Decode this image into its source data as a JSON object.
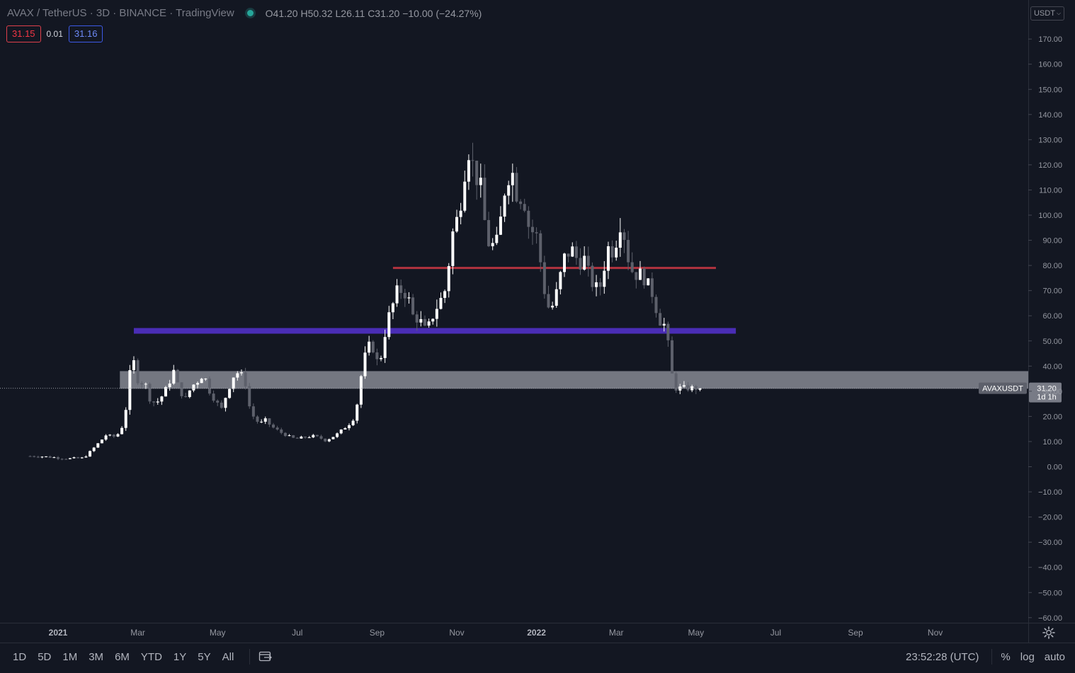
{
  "legend": {
    "title": "AVAX / TetherUS · 3D · BINANCE · TradingView",
    "ohlc": "O41.20  H50.32  L26.11  C31.20  −10.00 (−24.27%)"
  },
  "quote": {
    "sell": "31.15",
    "spread": "0.01",
    "buy": "31.16"
  },
  "currency": "USDT",
  "last_price_label": {
    "symbol": "AVAXUSDT",
    "price": "31.20",
    "countdown": "1d 1h"
  },
  "bottom_bar": {
    "ranges": [
      "1D",
      "5D",
      "1M",
      "3M",
      "6M",
      "YTD",
      "1Y",
      "5Y",
      "All"
    ],
    "time": "23:52:28 (UTC)",
    "percent": "%",
    "log": "log",
    "auto": "auto"
  },
  "colors": {
    "background": "#131722",
    "candle_up": "#ffffff",
    "candle_down": "#5d606b",
    "red_line": "#b2333f",
    "purple_band": "#4a2db5",
    "grey_zone": "#9598a1"
  },
  "chart_data": {
    "type": "candlestick",
    "y_ticks": [
      "170.00",
      "160.00",
      "150.00",
      "140.00",
      "130.00",
      "120.00",
      "110.00",
      "100.00",
      "90.00",
      "80.00",
      "70.00",
      "60.00",
      "50.00",
      "40.00",
      "30.00",
      "20.00",
      "10.00",
      "0.00",
      "−10.00",
      "−20.00",
      "−30.00",
      "−40.00",
      "−50.00",
      "−60.00"
    ],
    "ylim": [
      -63,
      175
    ],
    "x_axis_labels": [
      {
        "label": "2021",
        "month": 0
      },
      {
        "label": "Mar",
        "month": 2
      },
      {
        "label": "May",
        "month": 4
      },
      {
        "label": "Jul",
        "month": 6
      },
      {
        "label": "Sep",
        "month": 8
      },
      {
        "label": "Nov",
        "month": 10
      },
      {
        "label": "2022",
        "month": 12
      },
      {
        "label": "Mar",
        "month": 14
      },
      {
        "label": "May",
        "month": 16
      },
      {
        "label": "Jul",
        "month": 18
      },
      {
        "label": "Sep",
        "month": 20
      },
      {
        "label": "Nov",
        "month": 22
      }
    ],
    "last_close": 31.2,
    "series_start_month": -0.7,
    "series_end_month": 16.15,
    "series": [
      {
        "m": -0.5,
        "c": 4.2
      },
      {
        "m": 0.3,
        "c": 3.2
      },
      {
        "m": 0.6,
        "c": 3.4
      },
      {
        "m": 0.75,
        "c": 5.0
      },
      {
        "m": 0.9,
        "c": 7.5
      },
      {
        "m": 1.05,
        "c": 10.0
      },
      {
        "m": 1.2,
        "c": 12.5
      },
      {
        "m": 1.4,
        "c": 12.0
      },
      {
        "m": 1.55,
        "c": 13.5
      },
      {
        "m": 1.65,
        "c": 18.0
      },
      {
        "m": 1.75,
        "c": 28.0
      },
      {
        "m": 1.85,
        "c": 46.0
      },
      {
        "m": 1.95,
        "c": 37.0
      },
      {
        "m": 2.05,
        "c": 32.0
      },
      {
        "m": 2.15,
        "c": 35.0
      },
      {
        "m": 2.3,
        "c": 27.0
      },
      {
        "m": 2.45,
        "c": 25.0
      },
      {
        "m": 2.6,
        "c": 28.0
      },
      {
        "m": 2.75,
        "c": 32.0
      },
      {
        "m": 2.9,
        "c": 38.0
      },
      {
        "m": 3.05,
        "c": 30.0
      },
      {
        "m": 3.2,
        "c": 27.0
      },
      {
        "m": 3.35,
        "c": 32.0
      },
      {
        "m": 3.5,
        "c": 34.0
      },
      {
        "m": 3.65,
        "c": 37.0
      },
      {
        "m": 3.8,
        "c": 30.0
      },
      {
        "m": 3.95,
        "c": 26.0
      },
      {
        "m": 4.1,
        "c": 23.0
      },
      {
        "m": 4.25,
        "c": 30.0
      },
      {
        "m": 4.4,
        "c": 36.0
      },
      {
        "m": 4.55,
        "c": 38.0
      },
      {
        "m": 4.7,
        "c": 33.0
      },
      {
        "m": 4.8,
        "c": 24.0
      },
      {
        "m": 4.9,
        "c": 20.0
      },
      {
        "m": 5.05,
        "c": 17.0
      },
      {
        "m": 5.2,
        "c": 18.5
      },
      {
        "m": 5.35,
        "c": 16.0
      },
      {
        "m": 5.5,
        "c": 14.5
      },
      {
        "m": 5.65,
        "c": 13.0
      },
      {
        "m": 5.8,
        "c": 12.0
      },
      {
        "m": 5.95,
        "c": 11.0
      },
      {
        "m": 6.1,
        "c": 11.5
      },
      {
        "m": 6.25,
        "c": 11.8
      },
      {
        "m": 6.4,
        "c": 12.2
      },
      {
        "m": 6.55,
        "c": 11.6
      },
      {
        "m": 6.7,
        "c": 10.5
      },
      {
        "m": 6.85,
        "c": 11.5
      },
      {
        "m": 7.0,
        "c": 13.0
      },
      {
        "m": 7.15,
        "c": 15.0
      },
      {
        "m": 7.3,
        "c": 17.0
      },
      {
        "m": 7.45,
        "c": 20.0
      },
      {
        "m": 7.55,
        "c": 30.0
      },
      {
        "m": 7.65,
        "c": 42.0
      },
      {
        "m": 7.75,
        "c": 46.0
      },
      {
        "m": 7.85,
        "c": 50.0
      },
      {
        "m": 7.95,
        "c": 44.0
      },
      {
        "m": 8.05,
        "c": 40.0
      },
      {
        "m": 8.15,
        "c": 48.0
      },
      {
        "m": 8.25,
        "c": 58.0
      },
      {
        "m": 8.35,
        "c": 62.0
      },
      {
        "m": 8.45,
        "c": 67.0
      },
      {
        "m": 8.55,
        "c": 72.0
      },
      {
        "m": 8.65,
        "c": 68.0
      },
      {
        "m": 8.75,
        "c": 70.0
      },
      {
        "m": 8.85,
        "c": 62.0
      },
      {
        "m": 8.95,
        "c": 58.0
      },
      {
        "m": 9.05,
        "c": 60.0
      },
      {
        "m": 9.15,
        "c": 55.0
      },
      {
        "m": 9.25,
        "c": 54.0
      },
      {
        "m": 9.35,
        "c": 58.0
      },
      {
        "m": 9.45,
        "c": 62.0
      },
      {
        "m": 9.55,
        "c": 65.0
      },
      {
        "m": 9.65,
        "c": 68.0
      },
      {
        "m": 9.75,
        "c": 72.0
      },
      {
        "m": 9.85,
        "c": 90.0
      },
      {
        "m": 9.95,
        "c": 96.0
      },
      {
        "m": 10.05,
        "c": 100.0
      },
      {
        "m": 10.15,
        "c": 112.0
      },
      {
        "m": 10.25,
        "c": 124.0
      },
      {
        "m": 10.35,
        "c": 128.0
      },
      {
        "m": 10.45,
        "c": 112.0
      },
      {
        "m": 10.55,
        "c": 118.0
      },
      {
        "m": 10.65,
        "c": 103.0
      },
      {
        "m": 10.75,
        "c": 92.0
      },
      {
        "m": 10.85,
        "c": 86.0
      },
      {
        "m": 10.95,
        "c": 90.0
      },
      {
        "m": 11.05,
        "c": 88.0
      },
      {
        "m": 11.15,
        "c": 108.0
      },
      {
        "m": 11.25,
        "c": 112.0
      },
      {
        "m": 11.35,
        "c": 120.0
      },
      {
        "m": 11.45,
        "c": 113.0
      },
      {
        "m": 11.55,
        "c": 105.0
      },
      {
        "m": 11.65,
        "c": 110.0
      },
      {
        "m": 11.75,
        "c": 100.0
      },
      {
        "m": 11.85,
        "c": 92.0
      },
      {
        "m": 11.95,
        "c": 95.0
      },
      {
        "m": 12.05,
        "c": 88.0
      },
      {
        "m": 12.15,
        "c": 75.0
      },
      {
        "m": 12.25,
        "c": 65.0
      },
      {
        "m": 12.35,
        "c": 62.0
      },
      {
        "m": 12.45,
        "c": 66.0
      },
      {
        "m": 12.55,
        "c": 72.0
      },
      {
        "m": 12.65,
        "c": 80.0
      },
      {
        "m": 12.75,
        "c": 86.0
      },
      {
        "m": 12.85,
        "c": 84.0
      },
      {
        "m": 12.95,
        "c": 88.0
      },
      {
        "m": 13.05,
        "c": 78.0
      },
      {
        "m": 13.15,
        "c": 85.0
      },
      {
        "m": 13.25,
        "c": 80.0
      },
      {
        "m": 13.35,
        "c": 74.0
      },
      {
        "m": 13.45,
        "c": 72.0
      },
      {
        "m": 13.55,
        "c": 70.0
      },
      {
        "m": 13.65,
        "c": 74.0
      },
      {
        "m": 13.75,
        "c": 86.0
      },
      {
        "m": 13.85,
        "c": 88.0
      },
      {
        "m": 13.95,
        "c": 84.0
      },
      {
        "m": 14.05,
        "c": 96.0
      },
      {
        "m": 14.15,
        "c": 98.0
      },
      {
        "m": 14.25,
        "c": 86.0
      },
      {
        "m": 14.35,
        "c": 80.0
      },
      {
        "m": 14.45,
        "c": 76.0
      },
      {
        "m": 14.55,
        "c": 77.0
      },
      {
        "m": 14.65,
        "c": 76.0
      },
      {
        "m": 14.75,
        "c": 74.0
      },
      {
        "m": 14.85,
        "c": 70.0
      },
      {
        "m": 14.95,
        "c": 68.0
      },
      {
        "m": 15.05,
        "c": 58.0
      },
      {
        "m": 15.15,
        "c": 58.0
      },
      {
        "m": 15.25,
        "c": 55.0
      },
      {
        "m": 15.35,
        "c": 42.0
      },
      {
        "m": 15.45,
        "c": 31.2
      }
    ],
    "annotations": {
      "red_line": {
        "price": 79,
        "from_month": 8.4,
        "to_month": 16.5
      },
      "purple_band": {
        "price": 54,
        "from_month": 1.9,
        "to_month": 17.0
      },
      "grey_zone": {
        "from": 31,
        "to": 38,
        "from_month": 1.55
      }
    }
  }
}
